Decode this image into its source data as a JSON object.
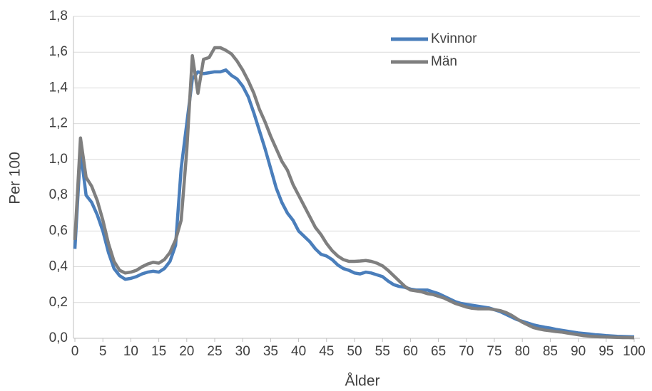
{
  "chart_data": {
    "type": "line",
    "x_label": "Ålder",
    "y_label": "Per 100",
    "x": [
      0,
      1,
      2,
      3,
      4,
      5,
      6,
      7,
      8,
      9,
      10,
      11,
      12,
      13,
      14,
      15,
      16,
      17,
      18,
      19,
      20,
      21,
      22,
      23,
      24,
      25,
      26,
      27,
      28,
      29,
      30,
      31,
      32,
      33,
      34,
      35,
      36,
      37,
      38,
      39,
      40,
      41,
      42,
      43,
      44,
      45,
      46,
      47,
      48,
      49,
      50,
      51,
      52,
      53,
      54,
      55,
      56,
      57,
      58,
      59,
      60,
      61,
      62,
      63,
      64,
      65,
      66,
      67,
      68,
      69,
      70,
      71,
      72,
      73,
      74,
      75,
      76,
      77,
      78,
      79,
      80,
      81,
      82,
      83,
      84,
      85,
      86,
      87,
      88,
      89,
      90,
      91,
      92,
      93,
      94,
      95,
      96,
      97,
      98,
      99,
      100
    ],
    "series": [
      {
        "name": "Kvinnor",
        "color": "#4a7ebb",
        "values": [
          0.5,
          1.05,
          0.8,
          0.76,
          0.69,
          0.6,
          0.48,
          0.39,
          0.35,
          0.33,
          0.335,
          0.345,
          0.36,
          0.37,
          0.375,
          0.37,
          0.39,
          0.43,
          0.52,
          0.95,
          1.2,
          1.45,
          1.49,
          1.48,
          1.485,
          1.49,
          1.49,
          1.5,
          1.47,
          1.45,
          1.41,
          1.35,
          1.26,
          1.16,
          1.06,
          0.95,
          0.84,
          0.76,
          0.7,
          0.66,
          0.6,
          0.57,
          0.54,
          0.5,
          0.47,
          0.46,
          0.44,
          0.41,
          0.39,
          0.38,
          0.365,
          0.36,
          0.37,
          0.365,
          0.355,
          0.345,
          0.32,
          0.3,
          0.29,
          0.285,
          0.275,
          0.27,
          0.27,
          0.27,
          0.26,
          0.25,
          0.235,
          0.22,
          0.205,
          0.195,
          0.19,
          0.185,
          0.18,
          0.175,
          0.17,
          0.16,
          0.15,
          0.135,
          0.12,
          0.105,
          0.095,
          0.085,
          0.075,
          0.068,
          0.062,
          0.057,
          0.05,
          0.045,
          0.04,
          0.035,
          0.03,
          0.027,
          0.024,
          0.02,
          0.018,
          0.015,
          0.013,
          0.011,
          0.01,
          0.009,
          0.008
        ]
      },
      {
        "name": "Män",
        "color": "#7f7f7f",
        "values": [
          0.55,
          1.12,
          0.9,
          0.85,
          0.77,
          0.66,
          0.53,
          0.43,
          0.38,
          0.365,
          0.37,
          0.38,
          0.4,
          0.415,
          0.425,
          0.42,
          0.44,
          0.48,
          0.55,
          0.66,
          1.05,
          1.58,
          1.37,
          1.56,
          1.57,
          1.625,
          1.625,
          1.61,
          1.59,
          1.55,
          1.5,
          1.44,
          1.37,
          1.28,
          1.21,
          1.13,
          1.06,
          0.99,
          0.94,
          0.86,
          0.8,
          0.74,
          0.68,
          0.62,
          0.58,
          0.53,
          0.49,
          0.46,
          0.44,
          0.43,
          0.43,
          0.432,
          0.435,
          0.43,
          0.42,
          0.405,
          0.38,
          0.35,
          0.32,
          0.29,
          0.27,
          0.265,
          0.26,
          0.25,
          0.245,
          0.235,
          0.225,
          0.21,
          0.195,
          0.185,
          0.175,
          0.168,
          0.165,
          0.165,
          0.165,
          0.16,
          0.155,
          0.145,
          0.13,
          0.11,
          0.09,
          0.075,
          0.06,
          0.052,
          0.046,
          0.042,
          0.038,
          0.035,
          0.03,
          0.025,
          0.02,
          0.015,
          0.012,
          0.01,
          0.008,
          0.007,
          0.006,
          0.005,
          0.004,
          0.004,
          0.003
        ]
      }
    ],
    "xlim": [
      0,
      100
    ],
    "xticks": [
      0,
      5,
      10,
      15,
      20,
      25,
      30,
      35,
      40,
      45,
      50,
      55,
      60,
      65,
      70,
      75,
      80,
      85,
      90,
      95,
      100
    ],
    "ylim": [
      0,
      1.8
    ],
    "yticks": [
      {
        "value": 0,
        "label": "0,0"
      },
      {
        "value": 0.2,
        "label": "0,2"
      },
      {
        "value": 0.4,
        "label": "0,4"
      },
      {
        "value": 0.6,
        "label": "0,6"
      },
      {
        "value": 0.8,
        "label": "0,8"
      },
      {
        "value": 1.0,
        "label": "1,0"
      },
      {
        "value": 1.2,
        "label": "1,2"
      },
      {
        "value": 1.4,
        "label": "1,4"
      },
      {
        "value": 1.6,
        "label": "1,6"
      },
      {
        "value": 1.8,
        "label": "1,8"
      }
    ],
    "grid": true,
    "legend": "top-right"
  }
}
